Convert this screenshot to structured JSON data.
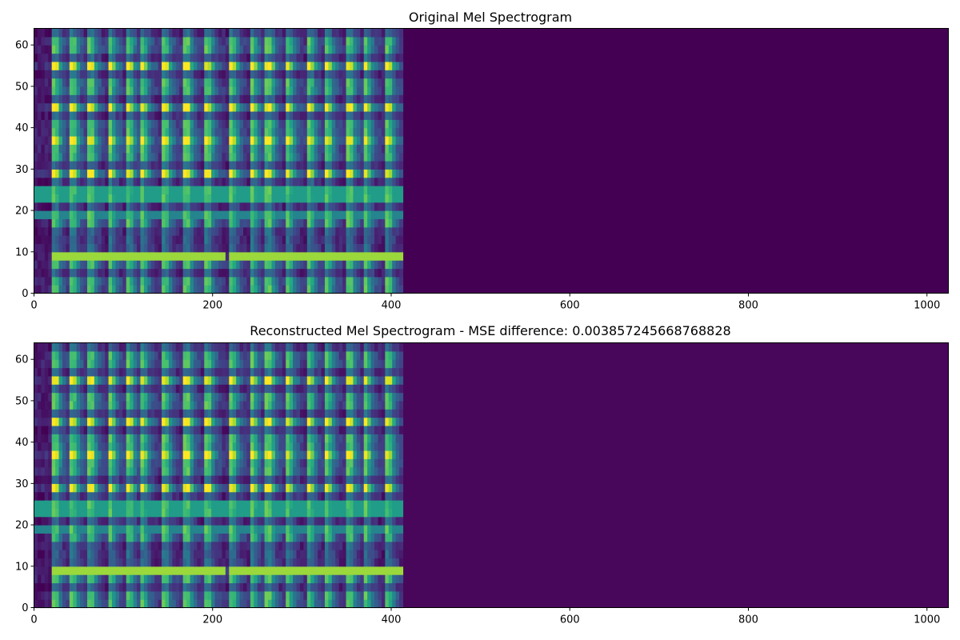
{
  "chart_data": [
    {
      "type": "heatmap",
      "title": "Original Mel Spectrogram",
      "xlabel": "",
      "ylabel": "",
      "xlim": [
        0,
        1024
      ],
      "ylim": [
        0,
        64
      ],
      "x_ticks": [
        0,
        200,
        400,
        600,
        800,
        1000
      ],
      "y_ticks": [
        0,
        10,
        20,
        30,
        40,
        50,
        60
      ],
      "colormap": "viridis",
      "signal_end_frame": 413,
      "onset_frames": [
        22,
        42,
        62,
        84,
        105,
        120,
        145,
        170,
        193,
        220,
        243,
        262,
        283,
        307,
        327,
        352,
        370,
        395
      ],
      "harmonic_bands": [
        2,
        8,
        18,
        24,
        29,
        34,
        37,
        40,
        45,
        50,
        55,
        60
      ],
      "background_color": "#440154"
    },
    {
      "type": "heatmap",
      "title": "Reconstructed Mel Spectrogram - MSE difference: 0.003857245668768828",
      "xlabel": "",
      "ylabel": "",
      "xlim": [
        0,
        1024
      ],
      "ylim": [
        0,
        64
      ],
      "x_ticks": [
        0,
        200,
        400,
        600,
        800,
        1000
      ],
      "y_ticks": [
        0,
        10,
        20,
        30,
        40,
        50,
        60
      ],
      "colormap": "viridis",
      "signal_end_frame": 413,
      "onset_frames": [
        22,
        42,
        62,
        84,
        105,
        120,
        145,
        170,
        193,
        220,
        243,
        262,
        283,
        307,
        327,
        352,
        370,
        395
      ],
      "harmonic_bands": [
        2,
        8,
        18,
        24,
        29,
        34,
        37,
        40,
        45,
        50,
        55,
        60
      ],
      "background_color": "#48075a"
    }
  ]
}
